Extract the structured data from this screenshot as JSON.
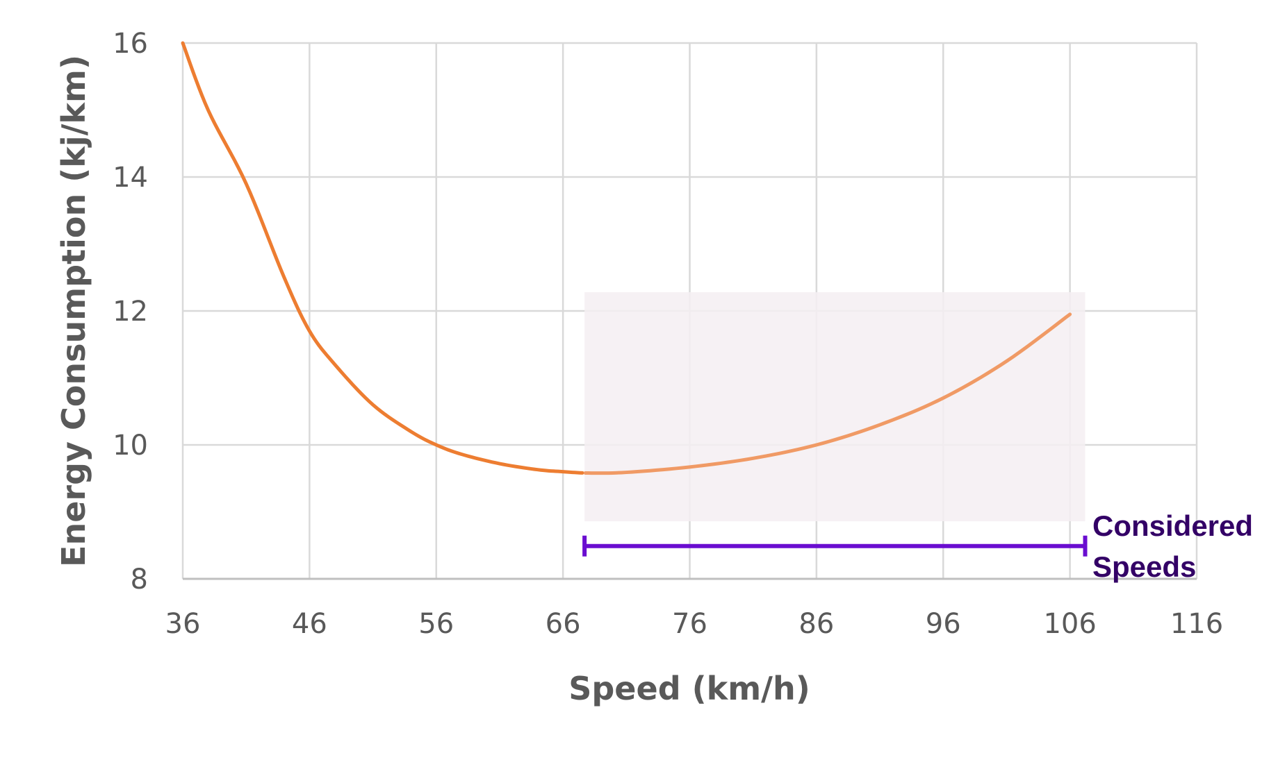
{
  "chart_data": {
    "type": "line",
    "title": "",
    "xlabel": "Speed (km/h)",
    "ylabel": "Energy Consumption (kj/km)",
    "xlim": [
      36,
      116
    ],
    "ylim": [
      8,
      16
    ],
    "xticks": [
      "36",
      "46",
      "56",
      "66",
      "76",
      "86",
      "96",
      "106",
      "116"
    ],
    "yticks": [
      "8",
      "10",
      "12",
      "14",
      "16"
    ],
    "grid": true,
    "series": [
      {
        "name": "Energy Consumption",
        "color": "#ED7D31",
        "highlight_color": "#F09A65",
        "x": [
          36,
          38,
          41,
          44,
          46,
          48,
          51,
          54,
          56,
          58,
          61,
          64,
          66,
          68,
          71,
          76,
          81,
          86,
          91,
          96,
          101,
          106
        ],
        "y": [
          16.0,
          15.0,
          13.9,
          12.5,
          11.7,
          11.2,
          10.6,
          10.2,
          10.0,
          9.86,
          9.72,
          9.63,
          9.6,
          9.58,
          9.59,
          9.67,
          9.8,
          10.0,
          10.3,
          10.7,
          11.25,
          11.95
        ]
      }
    ],
    "highlight_region": {
      "x": [
        67.7,
        107.2
      ],
      "y": [
        8.86,
        12.28
      ],
      "color": "#F5EEF2"
    },
    "range_bar": {
      "x": [
        67.7,
        107.2
      ],
      "y": 8.49,
      "color": "#6A0DD0"
    },
    "annotation": {
      "lines": [
        "Considered",
        "Speeds"
      ],
      "color": "#330066"
    }
  }
}
